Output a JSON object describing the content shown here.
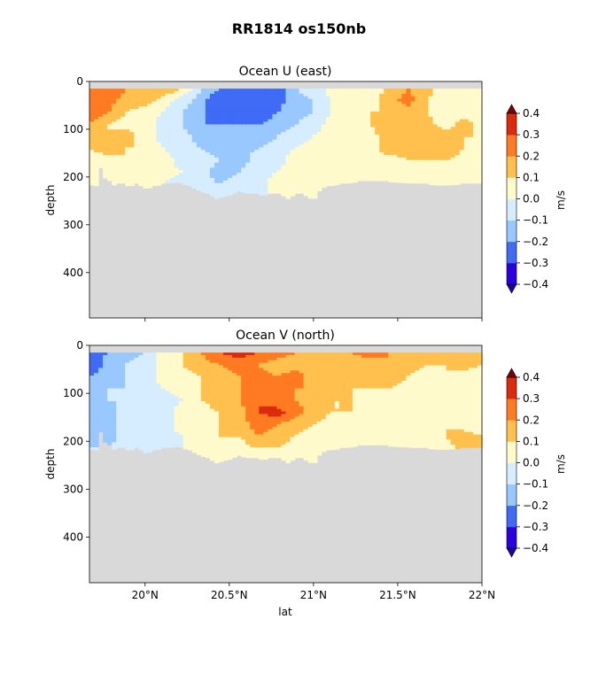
{
  "figure": {
    "suptitle": "RR1814 os150nb"
  },
  "colors": {
    "background_fill": "#d9d9d9",
    "levels": [
      "#2a00e0",
      "#3f6bf5",
      "#99c7ff",
      "#d6ecff",
      "#fffacc",
      "#ffc04d",
      "#ff7a20",
      "#dc2a0d"
    ],
    "under": "#1d00a8",
    "over": "#7a000d",
    "extreme_neg": "#1a0070",
    "extreme_pos": "#a10008"
  },
  "chart_data": [
    {
      "type": "heatmap",
      "title": "Ocean U (east)",
      "xlabel": "",
      "ylabel": "depth",
      "xlim": [
        19.67,
        22.0
      ],
      "ylim": [
        0,
        495
      ],
      "y_inverted": true,
      "xticks": [
        20.0,
        20.5,
        21.0,
        21.5,
        22.0
      ],
      "xtick_labels": [
        "",
        "",
        "",
        "",
        ""
      ],
      "yticks": [
        0,
        100,
        200,
        300,
        400
      ],
      "ytick_labels": [
        "0",
        "100",
        "200",
        "300",
        "400"
      ],
      "data_top_depth": 15,
      "bottom_depth_profile": {
        "lat": [
          19.67,
          19.72,
          19.74,
          19.77,
          19.79,
          19.82,
          19.86,
          19.9,
          19.95,
          20.0,
          20.1,
          20.2,
          20.3,
          20.35,
          20.42,
          20.5,
          20.55,
          20.62,
          20.7,
          20.78,
          20.85,
          20.92,
          21.0,
          21.05,
          21.1,
          21.2,
          21.3,
          21.45,
          21.6,
          21.75,
          21.9,
          22.0
        ],
        "depth": [
          215,
          220,
          172,
          215,
          208,
          218,
          213,
          220,
          215,
          225,
          215,
          210,
          225,
          232,
          245,
          238,
          230,
          235,
          238,
          233,
          245,
          232,
          248,
          222,
          218,
          213,
          208,
          210,
          213,
          217,
          215,
          215
        ]
      },
      "field": {
        "lat": [
          19.67,
          19.78,
          19.89,
          20.0,
          20.11,
          20.22,
          20.33,
          20.44,
          20.56,
          20.67,
          20.78,
          20.89,
          21.0,
          21.11,
          21.22,
          21.33,
          21.44,
          21.56,
          21.67,
          21.78,
          21.89,
          22.0
        ],
        "depth": [
          15,
          40,
          65,
          90,
          115,
          140,
          165,
          190,
          215,
          240
        ],
        "values": [
          [
            0.25,
            0.3,
            0.2,
            0.1,
            0.2,
            0.1,
            -0.1,
            -0.2,
            -0.25,
            -0.2,
            -0.3,
            -0.1,
            -0.05,
            0.05,
            0.0,
            0.05,
            0.1,
            0.2,
            0.15,
            0.05,
            0.0,
            0.0
          ],
          [
            0.3,
            0.25,
            0.15,
            0.15,
            0.05,
            -0.05,
            -0.15,
            -0.3,
            -0.3,
            -0.25,
            -0.25,
            -0.15,
            -0.1,
            0.0,
            0.0,
            0.05,
            0.15,
            0.25,
            0.1,
            0.05,
            0.05,
            0.05
          ],
          [
            0.25,
            0.2,
            0.1,
            0.05,
            0.0,
            -0.1,
            -0.15,
            -0.3,
            -0.25,
            -0.3,
            -0.2,
            -0.15,
            -0.1,
            0.0,
            0.05,
            0.1,
            0.1,
            0.15,
            0.1,
            0.05,
            0.05,
            0.05
          ],
          [
            0.2,
            0.1,
            0.05,
            0.05,
            -0.05,
            -0.1,
            -0.2,
            -0.2,
            -0.2,
            -0.2,
            -0.15,
            -0.1,
            -0.05,
            0.05,
            0.05,
            0.1,
            0.15,
            0.1,
            0.15,
            0.05,
            0.15,
            0.05
          ],
          [
            0.15,
            0.1,
            0.15,
            0.05,
            -0.05,
            -0.05,
            -0.15,
            -0.15,
            -0.15,
            -0.2,
            -0.1,
            -0.05,
            0.0,
            0.05,
            0.1,
            0.05,
            0.15,
            0.2,
            0.2,
            0.15,
            0.1,
            0.1
          ],
          [
            0.1,
            0.15,
            0.1,
            0.1,
            0.0,
            -0.05,
            -0.1,
            -0.15,
            -0.15,
            -0.1,
            -0.05,
            0.0,
            0.05,
            0.1,
            0.05,
            0.05,
            0.15,
            0.15,
            0.15,
            0.2,
            0.1,
            0.05
          ],
          [
            0.05,
            0.05,
            0.1,
            0.05,
            0.05,
            -0.05,
            -0.05,
            -0.1,
            -0.15,
            -0.05,
            -0.05,
            0.05,
            0.05,
            0.05,
            0.1,
            0.1,
            0.05,
            0.1,
            0.1,
            0.1,
            0.05,
            0.05
          ],
          [
            0.05,
            0.05,
            0.1,
            0.1,
            0.05,
            0.0,
            -0.05,
            -0.15,
            -0.1,
            -0.05,
            0.0,
            0.05,
            0.05,
            0.05,
            0.1,
            0.05,
            0.05,
            0.05,
            0.1,
            0.05,
            0.05,
            0.05
          ],
          [
            0.05,
            0.05,
            0.05,
            0.05,
            0.0,
            -0.05,
            -0.05,
            -0.1,
            -0.05,
            -0.05,
            0.05,
            0.05,
            0.05,
            0.05,
            0.05,
            0.05,
            0.05,
            0.05,
            0.05,
            0.05,
            0.05,
            0.05
          ],
          [
            0.05,
            0.05,
            0.05,
            0.05,
            0.0,
            -0.05,
            -0.05,
            -0.05,
            -0.05,
            -0.05,
            0.05,
            0.05,
            0.05,
            0.05,
            0.05,
            0.05,
            0.05,
            0.05,
            0.05,
            0.05,
            0.05,
            0.05
          ]
        ]
      },
      "colorbar": {
        "label": "m/s",
        "levels": [
          -0.4,
          -0.3,
          -0.2,
          -0.1,
          0.0,
          0.1,
          0.2,
          0.3,
          0.4
        ],
        "tick_labels": [
          "−0.4",
          "−0.3",
          "−0.2",
          "−0.1",
          "0.0",
          "0.1",
          "0.2",
          "0.3",
          "0.4"
        ],
        "extend": "both"
      }
    },
    {
      "type": "heatmap",
      "title": "Ocean V (north)",
      "xlabel": "lat",
      "ylabel": "depth",
      "xlim": [
        19.67,
        22.0
      ],
      "ylim": [
        0,
        495
      ],
      "y_inverted": true,
      "xticks": [
        20.0,
        20.5,
        21.0,
        21.5,
        22.0
      ],
      "xtick_labels": [
        "20°N",
        "20.5°N",
        "21°N",
        "21.5°N",
        "22°N"
      ],
      "yticks": [
        0,
        100,
        200,
        300,
        400
      ],
      "ytick_labels": [
        "0",
        "100",
        "200",
        "300",
        "400"
      ],
      "data_top_depth": 15,
      "bottom_depth_profile": {
        "lat": [
          19.67,
          19.72,
          19.74,
          19.77,
          19.79,
          19.82,
          19.86,
          19.9,
          19.95,
          20.0,
          20.1,
          20.2,
          20.3,
          20.35,
          20.42,
          20.5,
          20.55,
          20.62,
          20.7,
          20.78,
          20.85,
          20.92,
          21.0,
          21.05,
          21.1,
          21.2,
          21.3,
          21.45,
          21.6,
          21.75,
          21.9,
          22.0
        ],
        "depth": [
          215,
          220,
          172,
          215,
          208,
          218,
          213,
          220,
          215,
          225,
          215,
          210,
          225,
          232,
          245,
          238,
          230,
          235,
          238,
          233,
          245,
          232,
          248,
          222,
          218,
          213,
          208,
          210,
          213,
          217,
          215,
          215
        ]
      },
      "field": {
        "lat": [
          19.67,
          19.78,
          19.89,
          20.0,
          20.11,
          20.22,
          20.33,
          20.44,
          20.56,
          20.67,
          20.78,
          20.89,
          21.0,
          21.11,
          21.22,
          21.33,
          21.44,
          21.56,
          21.67,
          21.78,
          21.89,
          22.0
        ],
        "depth": [
          15,
          40,
          65,
          90,
          115,
          140,
          165,
          190,
          215,
          240
        ],
        "values": [
          [
            -0.25,
            -0.2,
            -0.15,
            -0.1,
            0.05,
            0.1,
            0.2,
            0.3,
            0.35,
            0.3,
            0.25,
            0.2,
            0.2,
            0.15,
            0.2,
            0.25,
            0.2,
            0.15,
            0.2,
            0.1,
            0.2,
            0.15
          ],
          [
            -0.3,
            -0.15,
            -0.1,
            -0.05,
            0.05,
            0.1,
            0.15,
            0.2,
            0.25,
            0.2,
            0.15,
            0.15,
            0.2,
            0.15,
            0.1,
            0.15,
            0.2,
            0.15,
            0.1,
            0.1,
            0.15,
            0.1
          ],
          [
            -0.2,
            -0.15,
            -0.1,
            -0.05,
            0.05,
            0.05,
            0.1,
            0.15,
            0.2,
            0.25,
            0.2,
            0.25,
            0.15,
            0.15,
            0.15,
            0.15,
            0.2,
            0.1,
            0.05,
            0.1,
            0.05,
            0.05
          ],
          [
            -0.15,
            -0.1,
            -0.1,
            -0.05,
            0.0,
            0.05,
            0.1,
            0.15,
            0.2,
            0.25,
            0.25,
            0.2,
            0.2,
            0.15,
            0.1,
            0.1,
            0.1,
            0.05,
            0.05,
            0.05,
            0.05,
            0.05
          ],
          [
            -0.2,
            -0.1,
            -0.1,
            -0.05,
            -0.05,
            0.0,
            0.1,
            0.15,
            0.2,
            0.3,
            0.25,
            0.2,
            0.15,
            0.1,
            0.1,
            0.05,
            0.05,
            0.05,
            0.05,
            0.05,
            0.05,
            0.05
          ],
          [
            -0.15,
            -0.15,
            -0.05,
            -0.05,
            -0.05,
            0.05,
            0.05,
            0.1,
            0.15,
            0.3,
            0.35,
            0.25,
            0.15,
            0.1,
            0.1,
            0.05,
            0.05,
            0.05,
            0.05,
            0.05,
            0.1,
            0.05
          ],
          [
            -0.15,
            -0.1,
            -0.1,
            -0.1,
            -0.05,
            0.05,
            0.05,
            0.1,
            0.15,
            0.25,
            0.2,
            0.15,
            0.1,
            0.05,
            0.05,
            0.05,
            0.05,
            0.05,
            0.05,
            0.1,
            0.05,
            0.05
          ],
          [
            -0.1,
            -0.15,
            -0.05,
            -0.1,
            -0.05,
            0.0,
            0.05,
            0.1,
            0.1,
            0.2,
            0.15,
            0.1,
            0.05,
            0.05,
            0.05,
            0.05,
            0.05,
            0.05,
            0.05,
            0.1,
            0.15,
            0.1
          ],
          [
            -0.1,
            -0.1,
            -0.05,
            -0.05,
            0.0,
            0.0,
            0.05,
            0.05,
            0.05,
            0.1,
            0.1,
            0.05,
            0.05,
            0.05,
            0.05,
            0.05,
            0.05,
            0.05,
            0.05,
            0.05,
            0.15,
            0.1
          ],
          [
            -0.05,
            -0.05,
            -0.05,
            -0.05,
            0.0,
            0.0,
            0.05,
            0.05,
            0.05,
            0.05,
            0.05,
            0.05,
            0.05,
            0.05,
            0.05,
            0.05,
            0.05,
            0.05,
            0.05,
            0.05,
            0.05,
            0.05
          ]
        ]
      },
      "colorbar": {
        "label": "m/s",
        "levels": [
          -0.4,
          -0.3,
          -0.2,
          -0.1,
          0.0,
          0.1,
          0.2,
          0.3,
          0.4
        ],
        "tick_labels": [
          "−0.4",
          "−0.3",
          "−0.2",
          "−0.1",
          "0.0",
          "0.1",
          "0.2",
          "0.3",
          "0.4"
        ],
        "extend": "both"
      }
    }
  ]
}
